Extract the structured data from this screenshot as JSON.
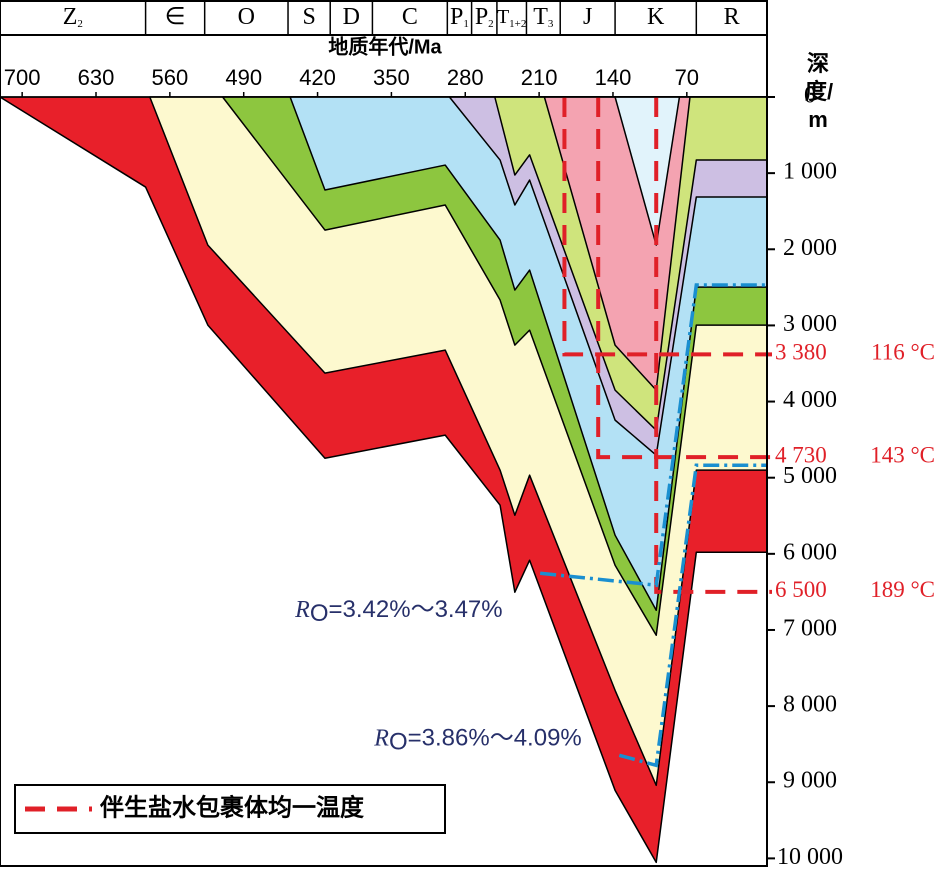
{
  "chart_data": {
    "type": "burial-history",
    "x_label": "地质年代/Ma",
    "y_label": "深度/m",
    "xlim": [
      721,
      -6
    ],
    "ylim": [
      0,
      10100
    ],
    "xticks": [
      700,
      630,
      560,
      490,
      420,
      350,
      280,
      210,
      140,
      70
    ],
    "yticks": [
      0,
      {
        "value": 1000,
        "label": "1 000"
      },
      {
        "value": 2000,
        "label": "2 000"
      },
      {
        "value": 3000,
        "label": "3 000"
      },
      {
        "value": 4000,
        "label": "4 000"
      },
      {
        "value": 5000,
        "label": "5 000"
      },
      {
        "value": 6000,
        "label": "6 000"
      },
      {
        "value": 7000,
        "label": "7 000"
      },
      {
        "value": 8000,
        "label": "8 000"
      },
      {
        "value": 9000,
        "label": "9 000"
      },
      {
        "value": 10000,
        "label": "10 000"
      }
    ],
    "strata": [
      {
        "name": "Z",
        "sub": "2"
      },
      {
        "name": "∈",
        "sub": ""
      },
      {
        "name": "O",
        "sub": ""
      },
      {
        "name": "S",
        "sub": ""
      },
      {
        "name": "D",
        "sub": ""
      },
      {
        "name": "C",
        "sub": ""
      },
      {
        "name": "P",
        "sub": "1"
      },
      {
        "name": "P",
        "sub": "2"
      },
      {
        "name": "T",
        "sub": "1+2"
      },
      {
        "name": "T",
        "sub": "3"
      },
      {
        "name": "J",
        "sub": ""
      },
      {
        "name": "K",
        "sub": ""
      },
      {
        "name": "R",
        "sub": ""
      }
    ],
    "strata_boundaries": [
      583,
      527,
      448,
      408,
      368,
      297,
      274,
      250,
      222,
      190,
      138,
      61
    ],
    "layers": [
      {
        "color": "#e8202a",
        "x": [
          721,
          583,
          524,
          413,
          299,
          247,
          233,
          219,
          138,
          99,
          61,
          -6
        ],
        "y": [
          0,
          1183,
          2996,
          4744,
          4441,
          5361,
          6504,
          6084,
          9106,
          10052,
          5979,
          5979
        ]
      },
      {
        "color": "#fdf9cf",
        "x": [
          579,
          524,
          413,
          299,
          247,
          233,
          219,
          138,
          99,
          61,
          -6
        ],
        "y": [
          0,
          1945,
          3627,
          3324,
          4901,
          5493,
          4967,
          7792,
          9040,
          4901,
          4901
        ]
      },
      {
        "color": "#8dc63f",
        "x": [
          510,
          413,
          299,
          247,
          233,
          219,
          138,
          99,
          61,
          -6
        ],
        "y": [
          0,
          1748,
          1419,
          2667,
          3259,
          3062,
          6150,
          7069,
          2996,
          2996
        ]
      },
      {
        "color": "#b3e1f5",
        "x": [
          446,
          413,
          299,
          247,
          233,
          219,
          138,
          99,
          61,
          -6
        ],
        "y": [
          0,
          1222,
          894,
          1879,
          2536,
          2273,
          5755,
          6741,
          2497,
          2497
        ]
      },
      {
        "color": "#cdbfe3",
        "x": [
          295,
          247,
          233,
          219,
          138,
          99,
          61,
          -6
        ],
        "y": [
          0,
          828,
          1419,
          1091,
          4244,
          4704,
          1314,
          1314
        ]
      },
      {
        "color": "#cfe47c",
        "x": [
          252,
          233,
          219,
          138,
          99,
          61,
          -6
        ],
        "y": [
          0,
          1025,
          760,
          3850,
          4376,
          828,
          828
        ]
      },
      {
        "color": "#f4a3b1",
        "x": [
          205,
          138,
          99,
          67
        ],
        "y": [
          0,
          3259,
          3850,
          0
        ]
      },
      {
        "color": "#e1f3fb",
        "x": [
          138,
          99,
          77
        ],
        "y": [
          0,
          1945,
          0
        ]
      }
    ],
    "temperatures": [
      {
        "age": 186,
        "depth": 3380,
        "depth_label": "3 380",
        "temperature": 116,
        "label": "116 °C"
      },
      {
        "age": 154,
        "depth": 4730,
        "depth_label": "4 730",
        "temperature": 143,
        "label": "143 °C"
      },
      {
        "age": 99,
        "depth": 6500,
        "depth_label": "6 500",
        "temperature": 189,
        "label": "189 °C"
      }
    ],
    "temperature_color": "#e02028",
    "ro_lines": [
      {
        "symbol": "R",
        "subscript": "O",
        "text": "=3.42%～3.47%",
        "x": [
          209,
          99,
          61,
          -6
        ],
        "y": [
          6255,
          6412,
          2470,
          2470
        ]
      },
      {
        "symbol": "R",
        "subscript": "O",
        "text": "=3.86%～4.09%",
        "x": [
          134,
          99,
          61,
          -6
        ],
        "y": [
          8646,
          8778,
          4836,
          4836
        ]
      }
    ],
    "ro_color": "#1a8fd0",
    "legend": "伴生盐水包裹体均一温度"
  }
}
